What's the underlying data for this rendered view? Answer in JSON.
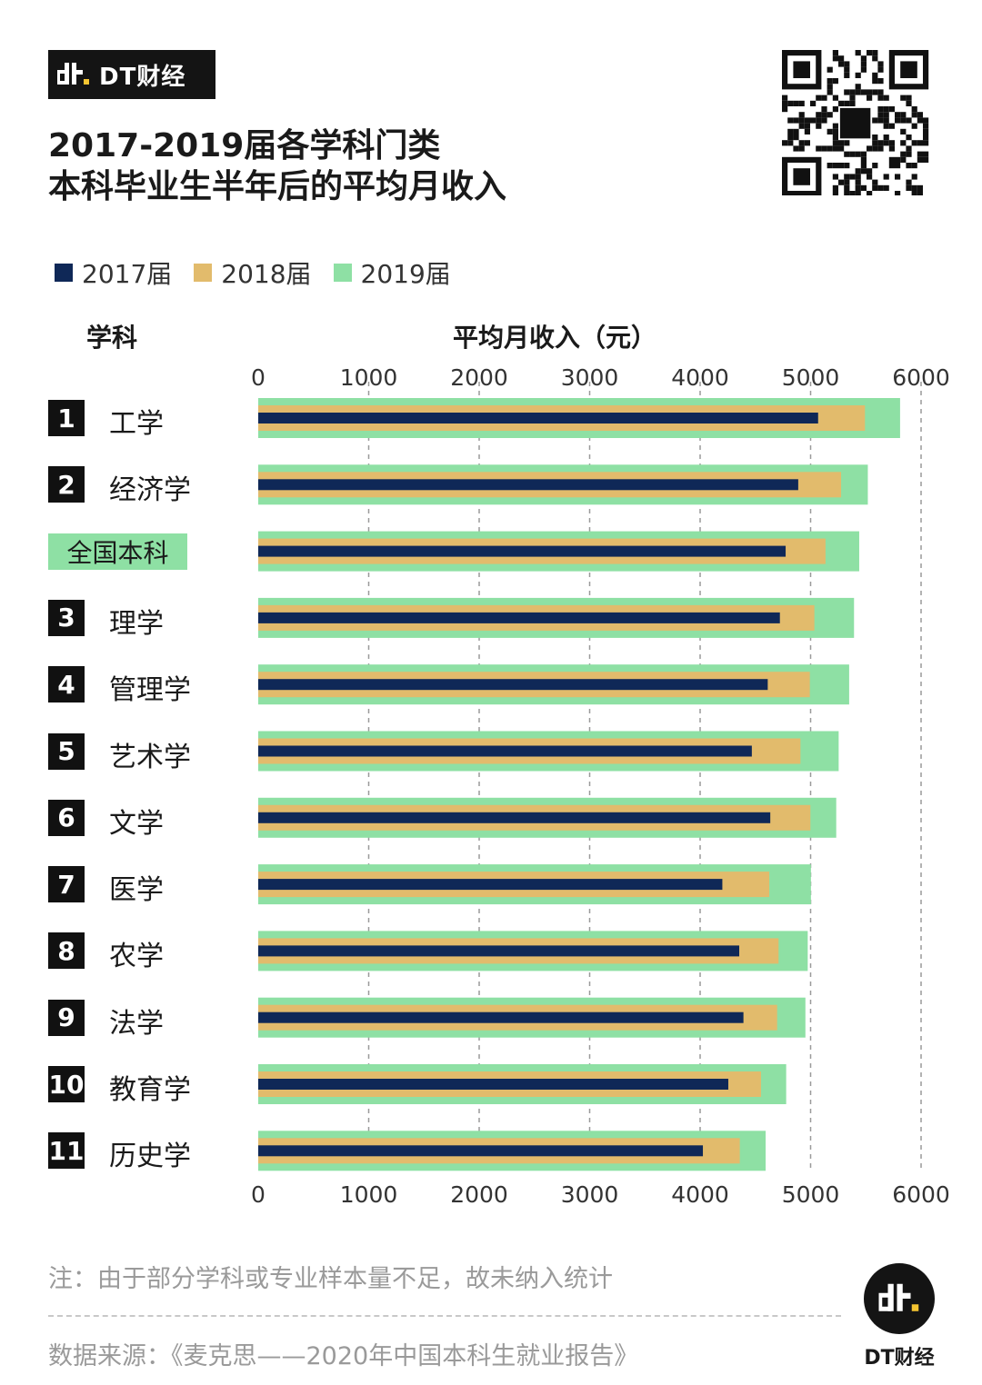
{
  "brand": {
    "name": "DT财经",
    "icon": "dt-logo-icon"
  },
  "title": {
    "line1": "2017-2019届各学科门类",
    "line2": "本科毕业生半年后的平均月收入"
  },
  "legend": [
    {
      "label": "2017届",
      "color": "#0f2857"
    },
    {
      "label": "2018届",
      "color": "#e2bb6c"
    },
    {
      "label": "2019届",
      "color": "#8ee0a4"
    }
  ],
  "column_headers": {
    "category": "学科",
    "value": "平均月收入（元）"
  },
  "chart_data": {
    "type": "bar",
    "orientation": "horizontal",
    "xlim": [
      0,
      6000
    ],
    "ticks": [
      "0",
      "1000",
      "2000",
      "3000",
      "4000",
      "5000",
      "6000"
    ],
    "grid": "vertical dashed",
    "categories": [
      {
        "rank": "1",
        "name": "工学"
      },
      {
        "rank": "2",
        "name": "经济学"
      },
      {
        "rank": "",
        "name": "全国本科",
        "highlight": true
      },
      {
        "rank": "3",
        "name": "理学"
      },
      {
        "rank": "4",
        "name": "管理学"
      },
      {
        "rank": "5",
        "name": "艺术学"
      },
      {
        "rank": "6",
        "name": "文学"
      },
      {
        "rank": "7",
        "name": "医学"
      },
      {
        "rank": "8",
        "name": "农学"
      },
      {
        "rank": "9",
        "name": "法学"
      },
      {
        "rank": "10",
        "name": "教育学"
      },
      {
        "rank": "11",
        "name": "历史学"
      }
    ],
    "series": [
      {
        "name": "2017届",
        "values": [
          5068,
          4888,
          4774,
          4722,
          4612,
          4468,
          4635,
          4201,
          4354,
          4392,
          4255,
          4025
        ]
      },
      {
        "name": "2018届",
        "values": [
          5492,
          5276,
          5135,
          5034,
          4993,
          4908,
          4998,
          4626,
          4710,
          4697,
          4551,
          4359
        ]
      },
      {
        "name": "2019届",
        "values": [
          5810,
          5518,
          5440,
          5393,
          5349,
          5254,
          5232,
          5003,
          4974,
          4953,
          4779,
          4593
        ]
      }
    ]
  },
  "note": "注：由于部分学科或专业样本量不足，故未纳入统计",
  "source": "数据来源：《麦克思——2020年中国本科生就业报告》",
  "footer_logo": {
    "name": "DT财经"
  }
}
